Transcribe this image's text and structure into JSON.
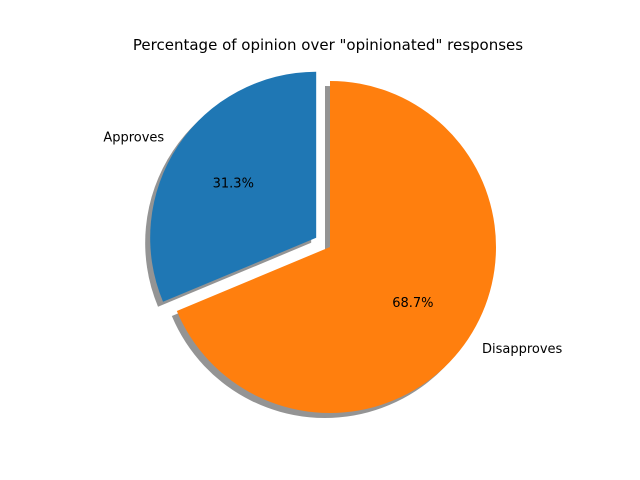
{
  "chart_data": {
    "type": "pie",
    "title": "Percentage of opinion over \"opinionated\" responses",
    "start_angle_deg": 90,
    "direction": "counterclockwise",
    "shadow": true,
    "slices": [
      {
        "label": "Approves",
        "value": 31.3,
        "pct_label": "31.3%",
        "color": "#1f77b4",
        "exploded": true,
        "explode_fraction": 0.1
      },
      {
        "label": "Disapproves",
        "value": 68.7,
        "pct_label": "68.7%",
        "color": "#ff7f0e",
        "exploded": false,
        "explode_fraction": 0
      }
    ]
  }
}
